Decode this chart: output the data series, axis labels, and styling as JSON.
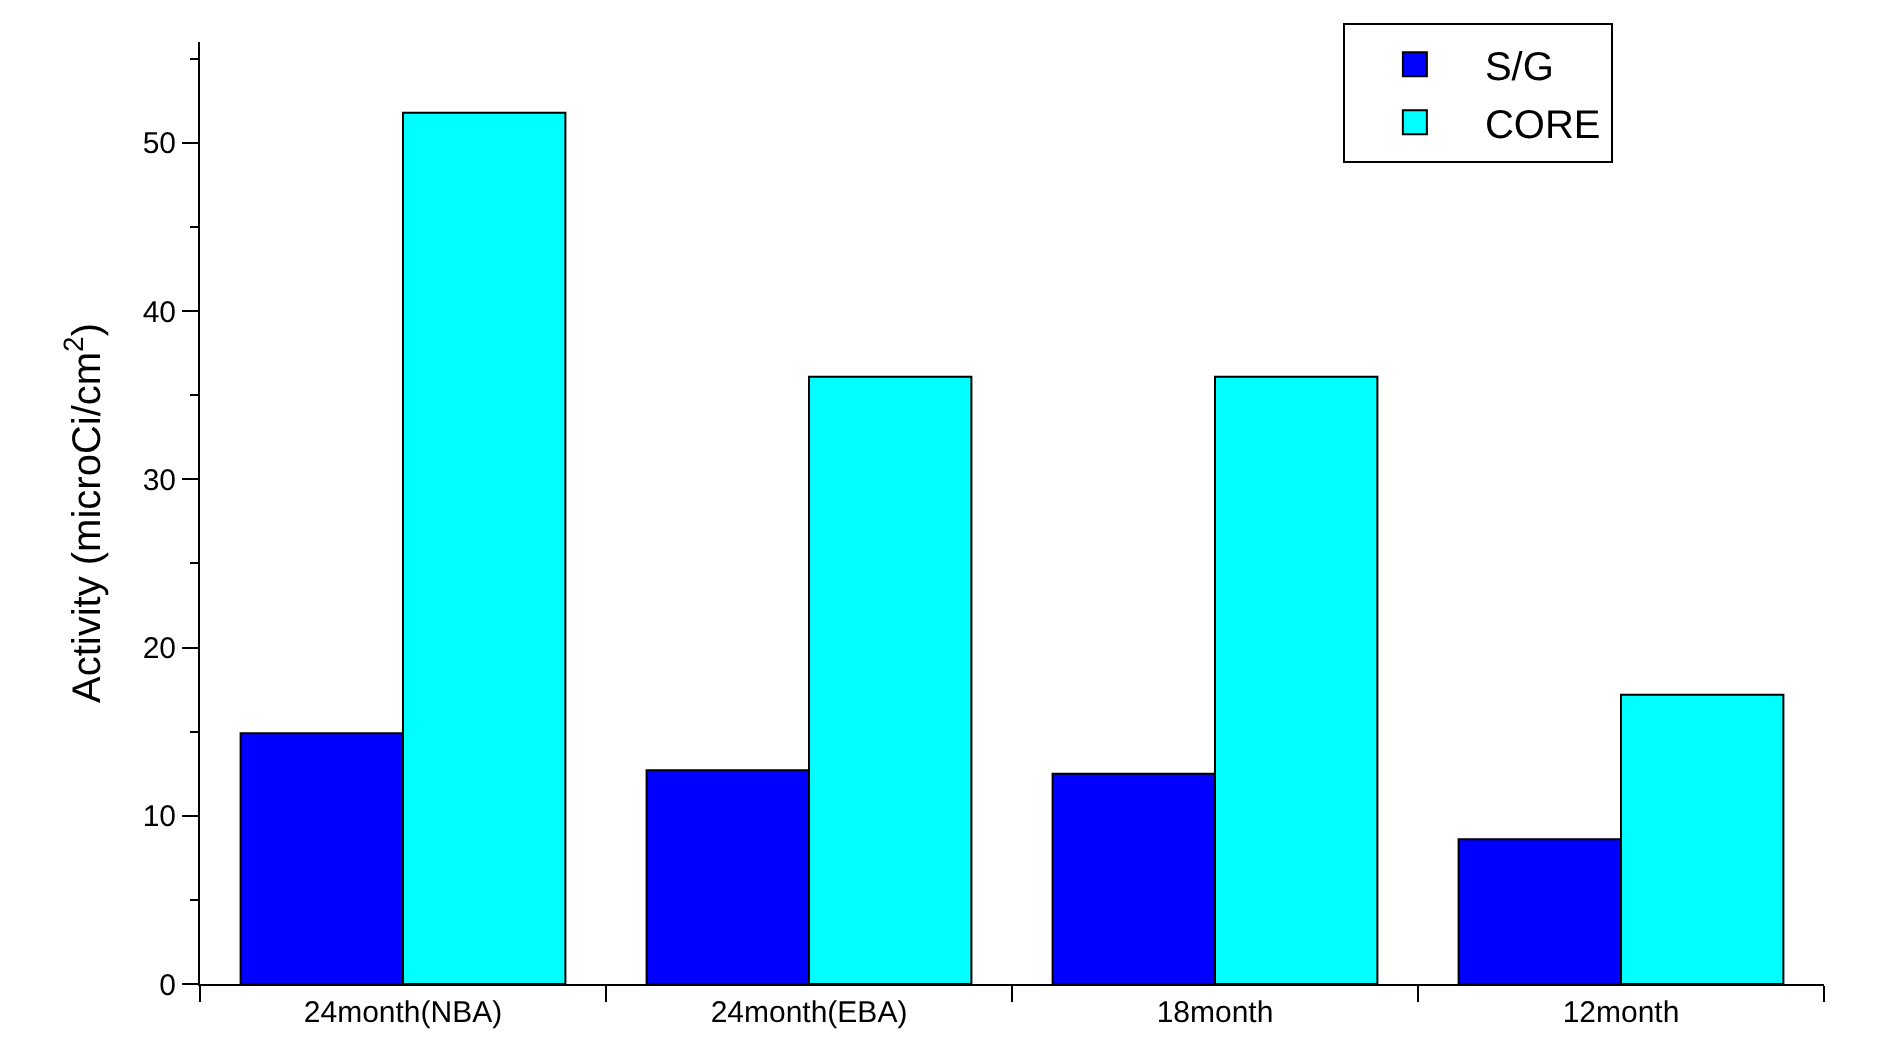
{
  "chart_data": {
    "type": "bar",
    "ylabel": "Activity (microCi/cm$^{2}$)",
    "categories": [
      "24month(NBA)",
      "24month(EBA)",
      "18month",
      "12month"
    ],
    "series": [
      {
        "name": "S/G",
        "color": "#0000ff",
        "values": [
          14.9,
          12.7,
          12.5,
          8.6
        ]
      },
      {
        "name": "CORE",
        "color": "#00ffff",
        "values": [
          51.8,
          36.1,
          36.1,
          17.2
        ]
      }
    ],
    "ylim": [
      0,
      56
    ],
    "yticks": [
      0,
      10,
      20,
      30,
      40,
      50
    ],
    "legend": "top right"
  }
}
